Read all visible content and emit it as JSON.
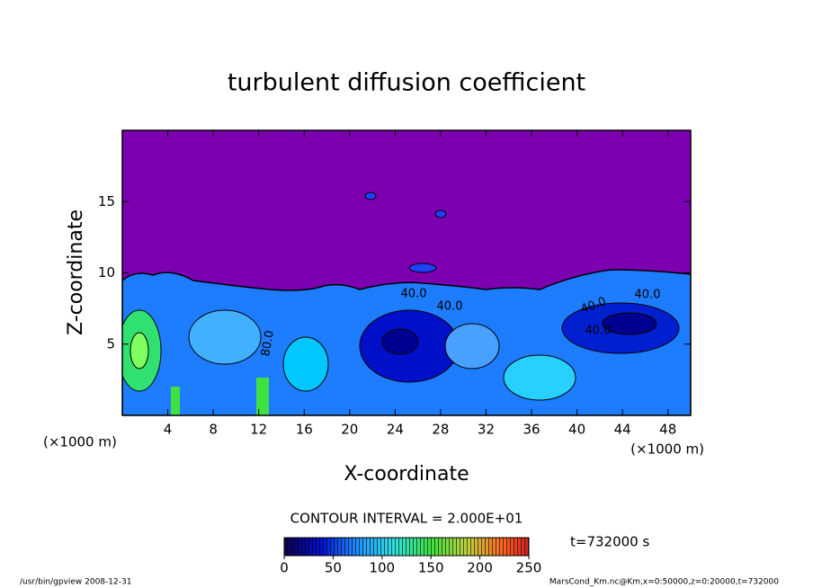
{
  "chart_data": {
    "type": "contour",
    "title": "turbulent diffusion coefficient",
    "x_label": "X-coordinate",
    "y_label": "Z-coordinate",
    "x_unit": "(×1000 m)",
    "y_unit": "(×1000 m)",
    "xlim": [
      0,
      50
    ],
    "xticks": [
      4,
      8,
      12,
      16,
      20,
      24,
      28,
      32,
      36,
      40,
      44,
      48
    ],
    "ylim": [
      0,
      20
    ],
    "yticks": [
      5,
      10,
      15
    ],
    "contour_interval_label": "CONTOUR INTERVAL = 2.000E+01",
    "time_label": "t=732000 s",
    "contour_labels": [
      "40.0",
      "40.0",
      "40.0",
      "80.0",
      "40.0",
      "40.0"
    ],
    "colorbar": {
      "lim": [
        0,
        250
      ],
      "ticks": [
        0,
        50,
        100,
        150,
        200,
        250
      ]
    },
    "footer_left": "/usr/bin/gpview   2008-12-31",
    "footer_right": "MarsCond_Km.nc@Km,x=0:50000,z=0:20000,t=732000"
  }
}
